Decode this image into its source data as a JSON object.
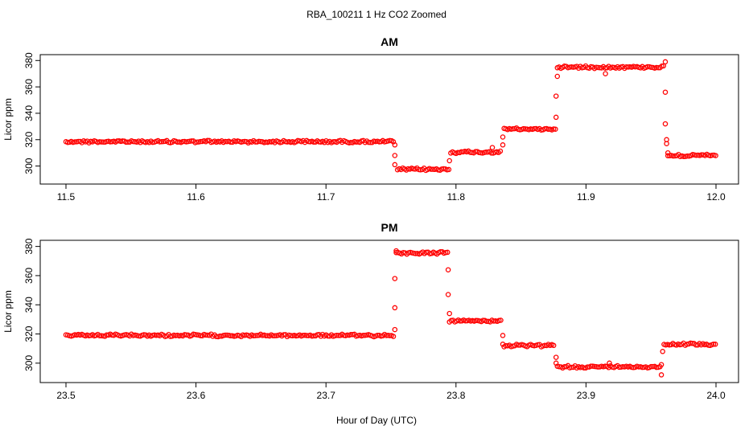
{
  "figure": {
    "title": "RBA_100211  1 Hz CO2 Zoomed",
    "xlabel": "Hour of Day (UTC)"
  },
  "colors": {
    "points": "#ff0000",
    "axes": "#000000"
  },
  "chart_data": [
    {
      "type": "scatter",
      "title": "AM",
      "xlabel": "Hour of Day (UTC)",
      "ylabel": "Licor ppm",
      "xlim": [
        11.5,
        12.0
      ],
      "ylim": [
        290,
        382
      ],
      "xticks": [
        "11.5",
        "11.6",
        "11.7",
        "11.8",
        "11.9",
        "12.0"
      ],
      "yticks": [
        "300",
        "320",
        "340",
        "360",
        "380"
      ],
      "grid": false,
      "series": [
        {
          "marker": "open-circle",
          "segments": [
            {
              "x_start": 11.5,
              "x_end": 11.752,
              "y": 318.5
            },
            {
              "x_start": 11.755,
              "x_end": 11.795,
              "y": 297.5
            },
            {
              "x_start": 11.796,
              "x_end": 11.835,
              "y": 310.5
            },
            {
              "x_start": 11.837,
              "x_end": 11.877,
              "y": 328.0
            },
            {
              "x_start": 11.878,
              "x_end": 11.96,
              "y": 375.0
            },
            {
              "x_start": 11.963,
              "x_end": 12.0,
              "y": 308.0
            }
          ],
          "transition_points": [
            {
              "x": 11.753,
              "y": 316
            },
            {
              "x": 11.753,
              "y": 308
            },
            {
              "x": 11.753,
              "y": 301
            },
            {
              "x": 11.795,
              "y": 304
            },
            {
              "x": 11.836,
              "y": 316
            },
            {
              "x": 11.836,
              "y": 322
            },
            {
              "x": 11.877,
              "y": 337
            },
            {
              "x": 11.877,
              "y": 353
            },
            {
              "x": 11.878,
              "y": 368
            },
            {
              "x": 11.961,
              "y": 379
            },
            {
              "x": 11.961,
              "y": 356
            },
            {
              "x": 11.961,
              "y": 332
            },
            {
              "x": 11.962,
              "y": 320
            },
            {
              "x": 11.962,
              "y": 317
            },
            {
              "x": 11.963,
              "y": 310
            },
            {
              "x": 11.915,
              "y": 370
            },
            {
              "x": 11.828,
              "y": 314
            }
          ]
        }
      ]
    },
    {
      "type": "scatter",
      "title": "PM",
      "xlabel": "Hour of Day (UTC)",
      "ylabel": "Licor ppm",
      "xlim": [
        23.5,
        24.0
      ],
      "ylim": [
        290,
        382
      ],
      "xticks": [
        "23.5",
        "23.6",
        "23.7",
        "23.8",
        "23.9",
        "24.0"
      ],
      "yticks": [
        "300",
        "320",
        "340",
        "360",
        "380"
      ],
      "grid": false,
      "series": [
        {
          "marker": "open-circle",
          "segments": [
            {
              "x_start": 23.5,
              "x_end": 23.752,
              "y": 319.0
            },
            {
              "x_start": 23.754,
              "x_end": 23.794,
              "y": 375.5
            },
            {
              "x_start": 23.795,
              "x_end": 23.835,
              "y": 329.0
            },
            {
              "x_start": 23.837,
              "x_end": 23.876,
              "y": 312.0
            },
            {
              "x_start": 23.878,
              "x_end": 23.958,
              "y": 297.5
            },
            {
              "x_start": 23.96,
              "x_end": 24.0,
              "y": 313.0
            }
          ],
          "transition_points": [
            {
              "x": 23.753,
              "y": 323
            },
            {
              "x": 23.753,
              "y": 338
            },
            {
              "x": 23.753,
              "y": 358
            },
            {
              "x": 23.754,
              "y": 377
            },
            {
              "x": 23.794,
              "y": 364
            },
            {
              "x": 23.794,
              "y": 347
            },
            {
              "x": 23.795,
              "y": 334
            },
            {
              "x": 23.836,
              "y": 319
            },
            {
              "x": 23.836,
              "y": 313
            },
            {
              "x": 23.877,
              "y": 304
            },
            {
              "x": 23.877,
              "y": 300
            },
            {
              "x": 23.918,
              "y": 300
            },
            {
              "x": 23.958,
              "y": 299
            },
            {
              "x": 23.958,
              "y": 292
            },
            {
              "x": 23.959,
              "y": 308
            }
          ]
        }
      ]
    }
  ]
}
